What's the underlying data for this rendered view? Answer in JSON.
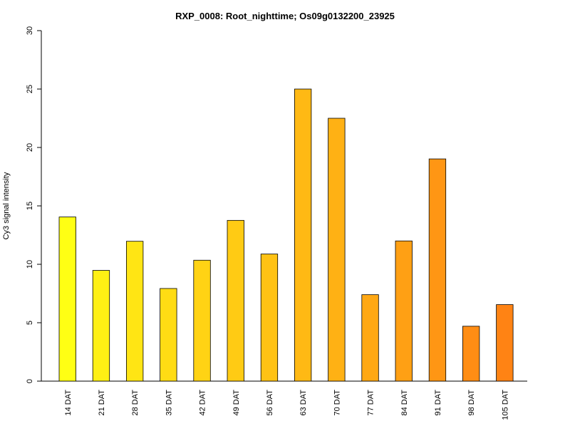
{
  "chart_data": {
    "type": "bar",
    "title": "RXP_0008: Root_nighttime; Os09g0132200_23925",
    "xlabel": "",
    "ylabel": "Cy3 signal intensity",
    "ylim": [
      0,
      30
    ],
    "yticks": [
      0,
      5,
      10,
      15,
      20,
      25,
      30
    ],
    "grid": false,
    "legend": "none",
    "categories": [
      "14 DAT",
      "21 DAT",
      "28 DAT",
      "35 DAT",
      "42 DAT",
      "49 DAT",
      "56 DAT",
      "63 DAT",
      "70 DAT",
      "77 DAT",
      "84 DAT",
      "91 DAT",
      "98 DAT",
      "105 DAT"
    ],
    "values": [
      14.05,
      9.48,
      11.97,
      7.93,
      10.35,
      13.76,
      10.88,
      25.0,
      22.5,
      7.4,
      12.0,
      19.02,
      4.7,
      6.55
    ],
    "colors": [
      "#FFFF14",
      "#FFF014",
      "#FFE514",
      "#FFDC14",
      "#FFD314",
      "#FFCB14",
      "#FFC214",
      "#FFB914",
      "#FFB114",
      "#FFA814",
      "#FFA014",
      "#FF9614",
      "#FF8D14",
      "#FF8314"
    ]
  }
}
